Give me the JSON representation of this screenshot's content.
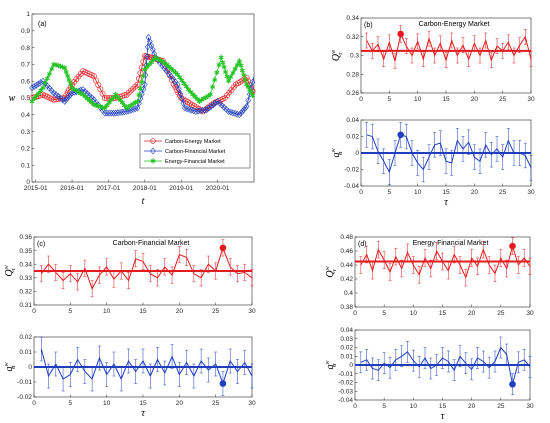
{
  "chart_data": [
    {
      "id": "a",
      "type": "line",
      "panel_label": "(a)",
      "xlabel": "t",
      "ylabel": "w",
      "xticks": [
        "2015-01",
        "2016-01",
        "2017-01",
        "2018-01",
        "2019-01",
        "2020-01"
      ],
      "x_years": [
        2014.9,
        2021.0
      ],
      "ylim": [
        0,
        1
      ],
      "yticks": [
        "0",
        "0.1",
        "0.2",
        "0.3",
        "0.4",
        "0.5",
        "0.6",
        "0.7",
        "0.8",
        "0.9",
        "1"
      ],
      "legend_position": "bottom-right",
      "series": [
        {
          "name": "Carbon-Energy Market",
          "color": "#e41a1c",
          "marker": "circle",
          "x": [
            2014.9,
            2015.2,
            2015.5,
            2015.8,
            2016.0,
            2016.3,
            2016.6,
            2016.9,
            2017.2,
            2017.5,
            2017.8,
            2018.0,
            2018.2,
            2018.5,
            2018.8,
            2019.0,
            2019.3,
            2019.6,
            2019.9,
            2020.2,
            2020.5,
            2020.8,
            2021.0
          ],
          "y": [
            0.5,
            0.52,
            0.49,
            0.5,
            0.58,
            0.66,
            0.63,
            0.5,
            0.5,
            0.52,
            0.58,
            0.75,
            0.74,
            0.72,
            0.58,
            0.5,
            0.46,
            0.42,
            0.47,
            0.5,
            0.58,
            0.62,
            0.52
          ]
        },
        {
          "name": "Carbon-Financial Market",
          "color": "#1f3fbf",
          "marker": "diamond",
          "x": [
            2014.9,
            2015.2,
            2015.5,
            2015.8,
            2016.0,
            2016.3,
            2016.6,
            2016.9,
            2017.2,
            2017.5,
            2017.8,
            2018.0,
            2018.1,
            2018.3,
            2018.6,
            2018.9,
            2019.1,
            2019.4,
            2019.7,
            2020.0,
            2020.3,
            2020.6,
            2020.8,
            2021.0
          ],
          "y": [
            0.56,
            0.6,
            0.53,
            0.48,
            0.53,
            0.55,
            0.49,
            0.41,
            0.41,
            0.42,
            0.44,
            0.58,
            0.86,
            0.74,
            0.66,
            0.58,
            0.44,
            0.42,
            0.43,
            0.48,
            0.42,
            0.4,
            0.45,
            0.63
          ]
        },
        {
          "name": "Energy-Financial Market",
          "color": "#22c322",
          "marker": "star",
          "x": [
            2014.9,
            2015.2,
            2015.5,
            2015.8,
            2016.0,
            2016.3,
            2016.6,
            2016.9,
            2017.2,
            2017.5,
            2017.8,
            2018.0,
            2018.3,
            2018.6,
            2018.9,
            2019.2,
            2019.5,
            2019.8,
            2020.1,
            2020.3,
            2020.6,
            2020.8,
            2021.0
          ],
          "y": [
            0.48,
            0.56,
            0.7,
            0.68,
            0.56,
            0.52,
            0.46,
            0.44,
            0.52,
            0.44,
            0.48,
            0.67,
            0.74,
            0.7,
            0.64,
            0.55,
            0.48,
            0.52,
            0.74,
            0.6,
            0.72,
            0.58,
            0.5
          ]
        }
      ]
    },
    {
      "id": "b_top",
      "type": "line",
      "panel_label": "(b)",
      "panel_title": "Carbon-Energy Market",
      "ylabel": "Q^w_τ",
      "color": "#e41a1c",
      "xlim": [
        0,
        30
      ],
      "ylim": [
        0.26,
        0.34
      ],
      "yticks": [
        "0.26",
        "0.28",
        "0.3",
        "0.32",
        "0.34"
      ],
      "xticks": [
        "0",
        "5",
        "10",
        "15",
        "20",
        "25",
        "30"
      ],
      "mean": 0.305,
      "highlight": {
        "x": 7,
        "y": 0.323
      },
      "x": [
        1,
        2,
        3,
        4,
        5,
        6,
        7,
        8,
        9,
        10,
        11,
        12,
        13,
        14,
        15,
        16,
        17,
        18,
        19,
        20,
        21,
        22,
        23,
        24,
        25,
        26,
        27,
        28,
        29,
        30
      ],
      "y": [
        0.316,
        0.305,
        0.312,
        0.296,
        0.314,
        0.294,
        0.323,
        0.31,
        0.3,
        0.315,
        0.296,
        0.318,
        0.3,
        0.313,
        0.295,
        0.316,
        0.3,
        0.311,
        0.296,
        0.313,
        0.3,
        0.316,
        0.295,
        0.31,
        0.305,
        0.314,
        0.3,
        0.311,
        0.32,
        0.296
      ],
      "err": [
        0.008,
        0.008,
        0.008,
        0.008,
        0.008,
        0.008,
        0.009,
        0.008,
        0.008,
        0.008,
        0.008,
        0.008,
        0.008,
        0.008,
        0.008,
        0.008,
        0.008,
        0.008,
        0.008,
        0.008,
        0.008,
        0.008,
        0.008,
        0.008,
        0.008,
        0.008,
        0.008,
        0.008,
        0.008,
        0.008
      ]
    },
    {
      "id": "b_bot",
      "type": "line",
      "xlabel": "τ",
      "ylabel": "q^w_τ",
      "color": "#1f3fbf",
      "xlim": [
        0,
        30
      ],
      "ylim": [
        -0.04,
        0.04
      ],
      "yticks": [
        "-0.04",
        "-0.02",
        "0",
        "0.02",
        "0.04"
      ],
      "xticks": [
        "0",
        "5",
        "10",
        "15",
        "20",
        "25",
        "30"
      ],
      "mean": 0.0,
      "highlight": {
        "x": 7,
        "y": 0.022
      },
      "x": [
        1,
        2,
        3,
        4,
        5,
        6,
        7,
        8,
        9,
        10,
        11,
        12,
        13,
        14,
        15,
        16,
        17,
        18,
        19,
        20,
        21,
        22,
        23,
        24,
        25,
        26,
        27,
        28,
        29,
        30
      ],
      "y": [
        0.022,
        0.02,
        0.002,
        -0.01,
        -0.023,
        0.0,
        0.022,
        0.02,
        0.0,
        -0.012,
        -0.02,
        -0.005,
        0.01,
        0.012,
        -0.01,
        -0.012,
        0.015,
        0.005,
        0.013,
        -0.005,
        -0.01,
        0.01,
        -0.002,
        0.005,
        -0.005,
        0.015,
        0.0,
        0.0,
        -0.003,
        -0.018
      ],
      "err": [
        0.015,
        0.015,
        0.015,
        0.015,
        0.015,
        0.015,
        0.015,
        0.015,
        0.015,
        0.015,
        0.015,
        0.015,
        0.015,
        0.015,
        0.015,
        0.015,
        0.015,
        0.015,
        0.015,
        0.015,
        0.015,
        0.015,
        0.015,
        0.015,
        0.015,
        0.015,
        0.015,
        0.015,
        0.015,
        0.015
      ]
    },
    {
      "id": "c_top",
      "type": "line",
      "panel_label": "(c)",
      "panel_title": "Carbon-Financial Market",
      "ylabel": "Q^w_τ",
      "color": "#e41a1c",
      "xlim": [
        0,
        30
      ],
      "ylim": [
        0.31,
        0.36
      ],
      "yticks": [
        "0.31",
        "0.32",
        "0.33",
        "0.34",
        "0.35",
        "0.36"
      ],
      "xticks": [
        "0",
        "5",
        "10",
        "15",
        "20",
        "25",
        "30"
      ],
      "mean": 0.335,
      "highlight": {
        "x": 26,
        "y": 0.352
      },
      "x": [
        1,
        2,
        3,
        4,
        5,
        6,
        7,
        8,
        9,
        10,
        11,
        12,
        13,
        14,
        15,
        16,
        17,
        18,
        19,
        20,
        21,
        22,
        23,
        24,
        25,
        26,
        27,
        28,
        29,
        30
      ],
      "y": [
        0.333,
        0.34,
        0.334,
        0.328,
        0.333,
        0.327,
        0.337,
        0.322,
        0.332,
        0.338,
        0.329,
        0.335,
        0.328,
        0.344,
        0.342,
        0.333,
        0.33,
        0.338,
        0.332,
        0.347,
        0.345,
        0.333,
        0.33,
        0.34,
        0.335,
        0.352,
        0.338,
        0.333,
        0.334,
        0.33
      ],
      "err": [
        0.006,
        0.006,
        0.006,
        0.006,
        0.006,
        0.006,
        0.006,
        0.006,
        0.006,
        0.006,
        0.006,
        0.006,
        0.006,
        0.006,
        0.006,
        0.006,
        0.006,
        0.006,
        0.006,
        0.006,
        0.006,
        0.006,
        0.006,
        0.006,
        0.006,
        0.006,
        0.006,
        0.006,
        0.006,
        0.006
      ]
    },
    {
      "id": "c_bot",
      "type": "line",
      "xlabel": "τ",
      "ylabel": "q^w_τ",
      "color": "#1f3fbf",
      "xlim": [
        0,
        30
      ],
      "ylim": [
        -0.02,
        0.02
      ],
      "yticks": [
        "-0.02",
        "-0.01",
        "0",
        "0.01",
        "0.02"
      ],
      "xticks": [
        "0",
        "5",
        "10",
        "15",
        "20",
        "25",
        "30"
      ],
      "mean": 0.0,
      "highlight": {
        "x": 26,
        "y": -0.011
      },
      "x": [
        1,
        2,
        3,
        4,
        5,
        6,
        7,
        8,
        9,
        10,
        11,
        12,
        13,
        14,
        15,
        16,
        17,
        18,
        19,
        20,
        21,
        22,
        23,
        24,
        25,
        26,
        27,
        28,
        29,
        30
      ],
      "y": [
        0.012,
        -0.006,
        0.002,
        -0.008,
        -0.005,
        0.005,
        -0.003,
        -0.008,
        0.006,
        -0.005,
        0.002,
        -0.008,
        0.004,
        -0.003,
        0.004,
        -0.006,
        0.005,
        -0.004,
        0.007,
        -0.005,
        0.003,
        -0.006,
        0.004,
        -0.002,
        0.002,
        -0.011,
        0.004,
        -0.003,
        0.003,
        -0.006
      ],
      "err": [
        0.008,
        0.008,
        0.008,
        0.008,
        0.008,
        0.008,
        0.008,
        0.008,
        0.008,
        0.008,
        0.008,
        0.008,
        0.008,
        0.008,
        0.008,
        0.008,
        0.008,
        0.008,
        0.008,
        0.008,
        0.008,
        0.008,
        0.008,
        0.008,
        0.008,
        0.008,
        0.008,
        0.008,
        0.008,
        0.008
      ]
    },
    {
      "id": "d_top",
      "type": "line",
      "panel_label": "(d)",
      "panel_title": "Energy-Financial Market",
      "ylabel": "Q^w_τ",
      "color": "#e41a1c",
      "xlim": [
        0,
        30
      ],
      "ylim": [
        0.38,
        0.48
      ],
      "yticks": [
        "0.38",
        "0.4",
        "0.42",
        "0.44",
        "0.46",
        "0.48"
      ],
      "xticks": [
        "0",
        "5",
        "10",
        "15",
        "20",
        "25",
        "30"
      ],
      "mean": 0.445,
      "highlight": {
        "x": 27,
        "y": 0.467
      },
      "x": [
        1,
        2,
        3,
        4,
        5,
        6,
        7,
        8,
        9,
        10,
        11,
        12,
        13,
        14,
        15,
        16,
        17,
        18,
        19,
        20,
        21,
        22,
        23,
        24,
        25,
        26,
        27,
        28,
        29,
        30
      ],
      "y": [
        0.44,
        0.455,
        0.432,
        0.462,
        0.447,
        0.43,
        0.452,
        0.435,
        0.458,
        0.44,
        0.426,
        0.45,
        0.435,
        0.46,
        0.445,
        0.432,
        0.455,
        0.44,
        0.422,
        0.45,
        0.438,
        0.462,
        0.44,
        0.428,
        0.45,
        0.435,
        0.467,
        0.44,
        0.45,
        0.438
      ],
      "err": [
        0.012,
        0.012,
        0.012,
        0.012,
        0.012,
        0.012,
        0.012,
        0.012,
        0.012,
        0.012,
        0.012,
        0.012,
        0.012,
        0.012,
        0.012,
        0.012,
        0.012,
        0.012,
        0.012,
        0.012,
        0.012,
        0.012,
        0.012,
        0.012,
        0.012,
        0.012,
        0.012,
        0.012,
        0.012,
        0.012
      ]
    },
    {
      "id": "d_bot",
      "type": "line",
      "xlabel": "τ",
      "ylabel": "q^w_τ",
      "color": "#1f3fbf",
      "xlim": [
        0,
        30
      ],
      "ylim": [
        -0.04,
        0.04
      ],
      "yticks": [
        "-0.04",
        "-0.03",
        "-0.02",
        "-0.01",
        "0",
        "0.01",
        "0.02",
        "0.03",
        "0.04"
      ],
      "xticks": [
        "0",
        "5",
        "10",
        "15",
        "20",
        "25",
        "30"
      ],
      "mean": 0.0,
      "highlight": {
        "x": 27,
        "y": -0.022
      },
      "x": [
        1,
        2,
        3,
        4,
        5,
        6,
        7,
        8,
        9,
        10,
        11,
        12,
        13,
        14,
        15,
        16,
        17,
        18,
        19,
        20,
        21,
        22,
        23,
        24,
        25,
        26,
        27,
        28,
        29,
        30
      ],
      "y": [
        0.003,
        0.006,
        -0.004,
        -0.006,
        0.002,
        -0.003,
        0.006,
        0.01,
        0.015,
        0.005,
        -0.002,
        0.008,
        -0.004,
        0.0,
        0.008,
        0.004,
        -0.006,
        0.01,
        0.002,
        -0.005,
        0.008,
        0.004,
        -0.003,
        0.004,
        0.02,
        0.012,
        -0.022,
        0.003,
        0.006,
        -0.002
      ],
      "err": [
        0.012,
        0.012,
        0.012,
        0.012,
        0.012,
        0.012,
        0.012,
        0.012,
        0.012,
        0.012,
        0.012,
        0.012,
        0.012,
        0.012,
        0.012,
        0.012,
        0.012,
        0.012,
        0.012,
        0.012,
        0.012,
        0.012,
        0.012,
        0.012,
        0.012,
        0.012,
        0.012,
        0.012,
        0.012,
        0.012
      ]
    }
  ]
}
